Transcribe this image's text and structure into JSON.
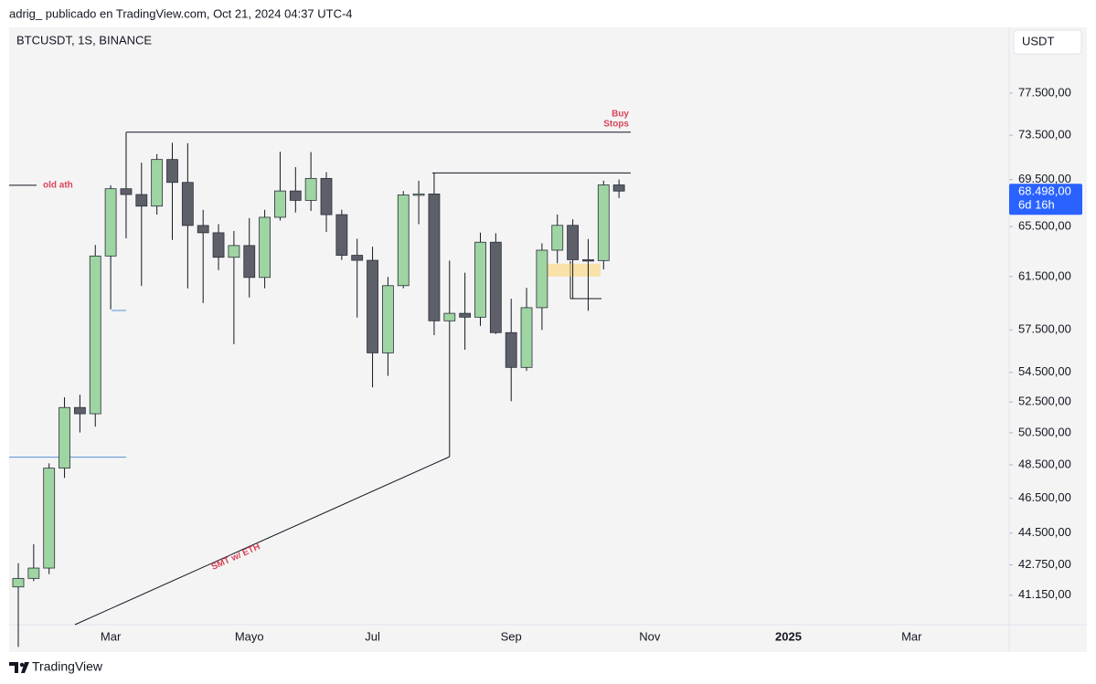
{
  "header": {
    "publisher": "adrig_ publicado en TradingView.com, Oct 21, 2024 04:37 UTC-4",
    "brand": "TradingView"
  },
  "chart_data": {
    "type": "candlestick",
    "title": "BTCUSDT, 1S, BINANCE",
    "currency": "USDT",
    "categories": [
      null,
      null,
      null,
      null,
      null,
      null,
      "Mar",
      null,
      null,
      null,
      null,
      null,
      null,
      null,
      null,
      "Mayo",
      null,
      null,
      null,
      null,
      null,
      null,
      null,
      "Jul",
      null,
      null,
      null,
      null,
      null,
      null,
      null,
      null,
      "Sep",
      null,
      null,
      null,
      null,
      null,
      null,
      null,
      null,
      "Nov",
      null,
      null,
      null,
      null,
      null,
      null,
      null,
      null,
      "2025",
      null,
      null,
      null,
      null,
      null,
      null,
      null,
      "Mar",
      null,
      null,
      null,
      null,
      null,
      null
    ],
    "open": [
      41580,
      42031,
      42582,
      48300,
      52137,
      51728,
      63113,
      68700,
      68200,
      67210,
      71280,
      69250,
      65590,
      64990,
      63010,
      63950,
      61430,
      66270,
      68507,
      67700,
      69600,
      66490,
      63170,
      62772,
      55857,
      60797,
      68165,
      68249,
      58161,
      58712,
      58427,
      64220,
      57301,
      54841,
      59132,
      63578,
      65600,
      62818,
      62750,
      69031,
      null,
      null,
      null,
      null,
      null,
      null,
      null,
      null,
      null,
      null,
      null,
      null,
      null,
      null,
      null,
      null,
      null,
      null,
      null,
      null,
      null,
      null,
      null,
      null,
      null
    ],
    "high": [
      42842,
      43882,
      48592,
      52816,
      52985,
      64000,
      69000,
      73777,
      71000,
      71770,
      72800,
      72750,
      66890,
      65700,
      65140,
      66200,
      66900,
      71979,
      70600,
      71950,
      70150,
      66900,
      64500,
      63861,
      61470,
      68500,
      69400,
      70079,
      62745,
      61800,
      65000,
      64955,
      59800,
      60625,
      64133,
      66500,
      66100,
      64478,
      69400,
      69500,
      null,
      null,
      null,
      null,
      null,
      null,
      null,
      null,
      null,
      null,
      null,
      null,
      null,
      null,
      null,
      null,
      null,
      null,
      null,
      null,
      null,
      null,
      null,
      null,
      null
    ],
    "low": [
      38555,
      41884,
      42258,
      47710,
      50521,
      50901,
      59005,
      64533,
      60775,
      66500,
      64400,
      60580,
      59480,
      62000,
      56470,
      59900,
      60600,
      66000,
      66670,
      66800,
      65060,
      62800,
      58402,
      53485,
      54260,
      60600,
      65700,
      57122,
      49000,
      56078,
      57787,
      57201,
      52550,
      54600,
      57493,
      62538,
      59828,
      58895,
      62050,
      67900,
      null,
      null,
      null,
      null,
      null,
      null,
      null,
      null,
      null,
      null,
      null,
      null,
      null,
      null,
      null,
      null,
      null,
      null,
      null,
      null,
      null,
      null,
      null,
      null,
      null
    ],
    "close": [
      42031,
      42582,
      48300,
      52137,
      51728,
      63113,
      68700,
      68200,
      67210,
      71280,
      69250,
      65590,
      64990,
      63010,
      63950,
      61430,
      66270,
      68507,
      67700,
      69600,
      66490,
      63170,
      62772,
      55857,
      60797,
      68165,
      68249,
      58161,
      58712,
      58427,
      64220,
      57301,
      54841,
      59132,
      63578,
      65600,
      62818,
      62750,
      69031,
      68498,
      null,
      null,
      null,
      null,
      null,
      null,
      null,
      null,
      null,
      null,
      null,
      null,
      null,
      null,
      null,
      null,
      null,
      null,
      null,
      null,
      null,
      null,
      null,
      null,
      null
    ],
    "up_color": "#9fd4a3",
    "down_color": "#5d6068",
    "ylim": [
      39650,
      84200
    ],
    "log_scale": true,
    "yticks": [
      {
        "value": 77500,
        "label": "77.500,00"
      },
      {
        "value": 73500,
        "label": "73.500,00"
      },
      {
        "value": 69500,
        "label": "69.500,00"
      },
      {
        "value": 65500,
        "label": "65.500,00"
      },
      {
        "value": 61500,
        "label": "61.500,00"
      },
      {
        "value": 57500,
        "label": "57.500,00"
      },
      {
        "value": 54500,
        "label": "54.500,00"
      },
      {
        "value": 52500,
        "label": "52.500,00"
      },
      {
        "value": 50500,
        "label": "50.500,00"
      },
      {
        "value": 48500,
        "label": "48.500,00"
      },
      {
        "value": 46500,
        "label": "46.500,00"
      },
      {
        "value": 44500,
        "label": "44.500,00"
      },
      {
        "value": 42750,
        "label": "42.750,00"
      },
      {
        "value": 41150,
        "label": "41.150,00"
      }
    ],
    "last_price": 68498,
    "last_price_label": "68.498,00",
    "countdown": "6d 16h",
    "levels": [
      {
        "value": 73777,
        "color": "#131722"
      },
      {
        "value": 70079,
        "color": "#131722"
      },
      {
        "value": 69000,
        "color": "#131722",
        "label": "old ath"
      },
      {
        "value": 48970,
        "color": "#5b8fd6"
      }
    ],
    "buy_stops_label": [
      "Buy",
      "Stops"
    ],
    "trendline_label": "SMT w/ ETH",
    "zone": [
      61500,
      62500
    ]
  }
}
